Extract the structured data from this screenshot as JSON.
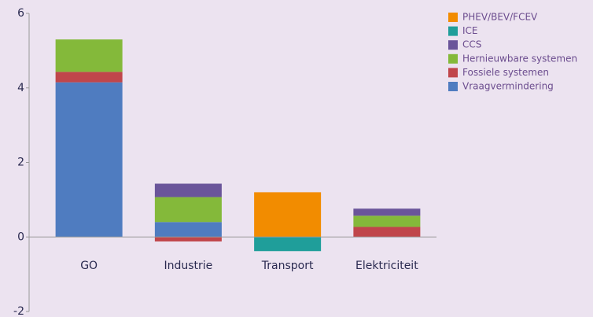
{
  "chart_data": {
    "type": "stacked_bar",
    "categories": [
      "GO",
      "Industrie",
      "Transport",
      "Elektriciteit"
    ],
    "series": [
      {
        "name": "Vraagvermindering",
        "color": "#4f7cc0",
        "values": [
          4.15,
          0.4,
          0,
          0
        ]
      },
      {
        "name": "Fossiele systemen",
        "color": "#c0464b",
        "values": [
          0.28,
          -0.12,
          0,
          0.27
        ]
      },
      {
        "name": "Hernieuwbare systemen",
        "color": "#84b93a",
        "values": [
          0.87,
          0.67,
          0,
          0.3
        ]
      },
      {
        "name": "CCS",
        "color": "#6a559a",
        "values": [
          0,
          0.36,
          0,
          0.19
        ]
      },
      {
        "name": "ICE",
        "color": "#1f9e9a",
        "values": [
          0,
          0,
          -0.38,
          0
        ]
      },
      {
        "name": "PHEV/BEV/FCEV",
        "color": "#f28c00",
        "values": [
          0,
          0,
          1.2,
          0
        ]
      }
    ],
    "ylim": [
      -2,
      6
    ],
    "yticks": [
      -2,
      0,
      2,
      4,
      6
    ],
    "legend": "right"
  }
}
